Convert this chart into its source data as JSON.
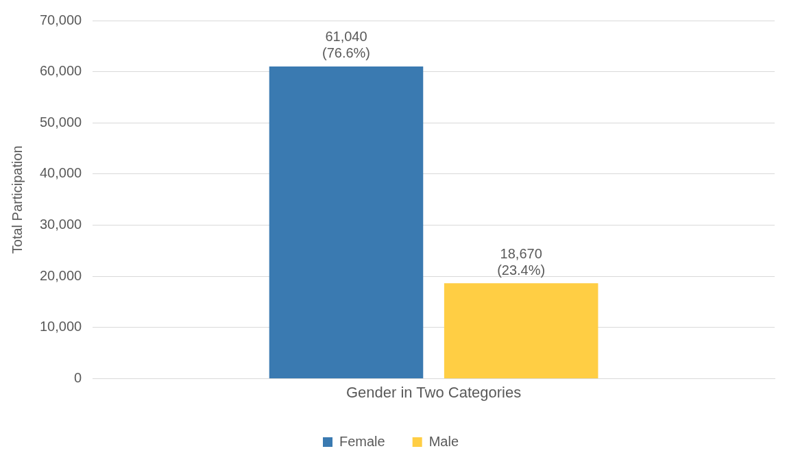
{
  "chart_data": {
    "type": "bar",
    "ylabel": "Total Participation",
    "categories": [
      "Gender in Two Categories"
    ],
    "series": [
      {
        "name": "Female",
        "color": "#3a7ab1",
        "values": [
          61040
        ],
        "value_labels": [
          "61,040 (76.6%)"
        ]
      },
      {
        "name": "Male",
        "color": "#ffce44",
        "values": [
          18670
        ],
        "value_labels": [
          "18,670 (23.4%)"
        ]
      }
    ],
    "ylim": [
      0,
      70000
    ],
    "yticks": [
      0,
      {
        "value": 10000,
        "label": "10,000"
      },
      {
        "value": 20000,
        "label": "20,000"
      },
      {
        "value": 30000,
        "label": "30,000"
      },
      {
        "value": 40000,
        "label": "40,000"
      },
      {
        "value": 50000,
        "label": "50,000"
      },
      {
        "value": 60000,
        "label": "60,000"
      },
      {
        "value": 70000,
        "label": "70,000"
      }
    ],
    "grid": "y",
    "legend": "bottom"
  }
}
